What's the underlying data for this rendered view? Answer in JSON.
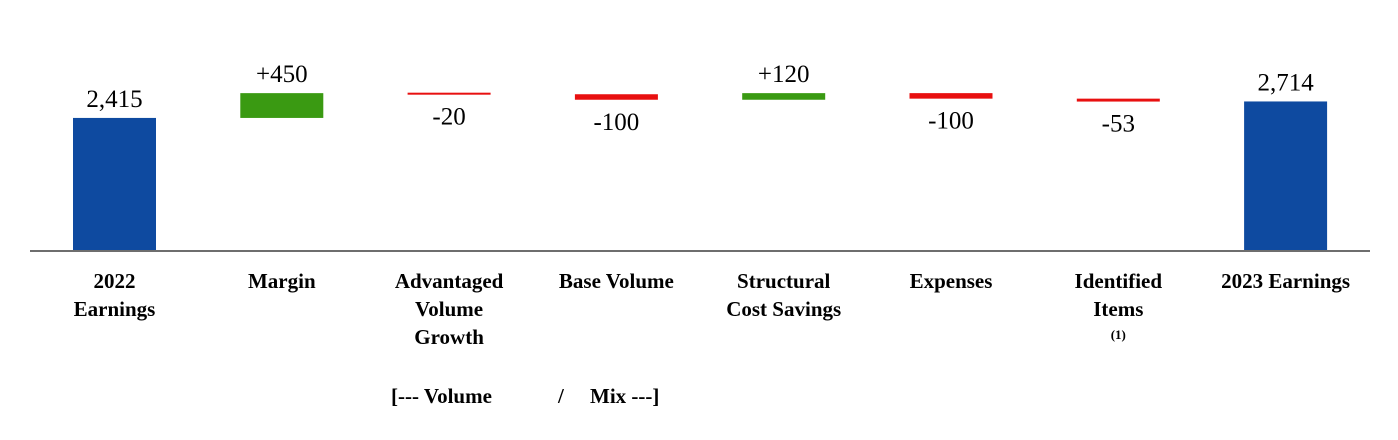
{
  "chart_data": {
    "type": "bar",
    "subtype": "waterfall",
    "categories": [
      [
        "2022",
        "Earnings"
      ],
      [
        "Margin"
      ],
      [
        "Advantaged",
        "Volume",
        "Growth"
      ],
      [
        "Base Volume"
      ],
      [
        "Structural",
        "Cost Savings"
      ],
      [
        "Expenses"
      ],
      [
        "Identified",
        "Items"
      ],
      [
        "2023 Earnings"
      ]
    ],
    "values": [
      2415,
      450,
      -20,
      -100,
      120,
      -100,
      -53,
      2714
    ],
    "kinds": [
      "total",
      "delta",
      "delta",
      "delta",
      "delta",
      "delta",
      "delta",
      "total"
    ],
    "value_labels": [
      "2,415",
      "+450",
      "-20",
      "-100",
      "+120",
      "-100",
      "-53",
      "2,714"
    ],
    "footnote": {
      "category_index": 6,
      "text": "(1)"
    },
    "group_label": {
      "left": "[--- Volume",
      "sep": "/",
      "right": "Mix ---]"
    },
    "colors": {
      "total": "#0e4aa0",
      "increase": "#3a9a12",
      "decrease": "#e81010",
      "axis": "#6e6e6e"
    },
    "yaxis_visible": false,
    "grid": false,
    "legend": "none"
  }
}
